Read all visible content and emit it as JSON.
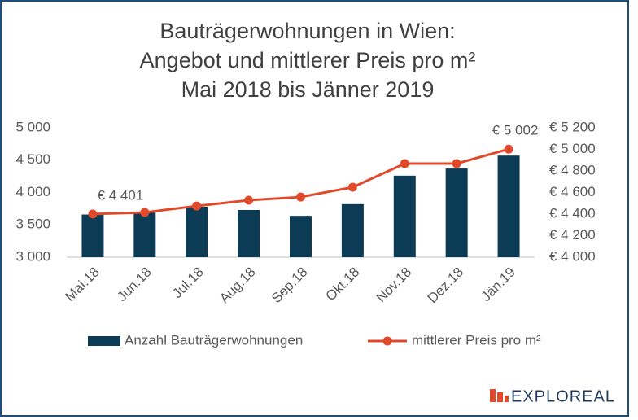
{
  "chart_data": {
    "type": "bar-line",
    "title": [
      "Bauträgerwohnungen in Wien:",
      "Angebot und mittlerer Preis pro m²",
      "Mai 2018 bis Jänner 2019"
    ],
    "categories": [
      "Mai.18",
      "Jun.18",
      "Jul.18",
      "Aug.18",
      "Sep.18",
      "Okt.18",
      "Nov.18",
      "Dez.18",
      "Jän.19"
    ],
    "series": [
      {
        "name": "Anzahl Bauträgerwohnungen",
        "type": "bar",
        "color": "#0b3b55",
        "values": [
          3660,
          3690,
          3780,
          3730,
          3640,
          3820,
          4260,
          4370,
          4570
        ]
      },
      {
        "name": "mittlerer Preis pro m²",
        "type": "line",
        "axis": "y2",
        "color": "#e04a2b",
        "values": [
          4401,
          4415,
          4475,
          4528,
          4558,
          4649,
          4868,
          4868,
          5002
        ],
        "value_labels": [
          "€ 4 401",
          null,
          null,
          null,
          null,
          null,
          null,
          null,
          "€ 5 002"
        ]
      }
    ],
    "ylim": [
      3000,
      5000
    ],
    "yticks": [
      {
        "value": 3000,
        "label": "3 000"
      },
      {
        "value": 3500,
        "label": "3 500"
      },
      {
        "value": 4000,
        "label": "4 000"
      },
      {
        "value": 4500,
        "label": "4 500"
      },
      {
        "value": 5000,
        "label": "5 000"
      }
    ],
    "y2lim": [
      4000,
      5200
    ],
    "y2ticks": [
      {
        "value": 4000,
        "label": "€ 4 000"
      },
      {
        "value": 4200,
        "label": "€ 4 200"
      },
      {
        "value": 4400,
        "label": "€ 4 400"
      },
      {
        "value": 4600,
        "label": "€ 4 600"
      },
      {
        "value": 4800,
        "label": "€ 4 800"
      },
      {
        "value": 5000,
        "label": "€ 5 000"
      },
      {
        "value": 5200,
        "label": "€ 5 200"
      }
    ],
    "grid": false,
    "legend": "bottom",
    "logo": "EXPLOREAL"
  }
}
